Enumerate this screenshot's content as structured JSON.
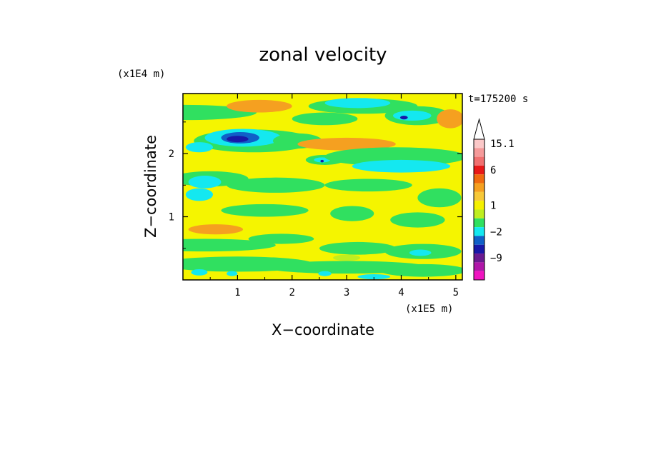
{
  "chart_data": {
    "type": "heatmap",
    "title": "zonal velocity",
    "xlabel": "X−coordinate",
    "ylabel": "Z−coordinate",
    "x_scale_label": "(x1E5 m)",
    "y_scale_label": "(x1E4 m)",
    "time_label": "t=175200 s",
    "xlim": [
      0,
      5.12
    ],
    "ylim": [
      0,
      2.95
    ],
    "x_ticks": [
      1,
      2,
      3,
      4,
      5
    ],
    "x_tick_labels": [
      "1",
      "2",
      "3",
      "4",
      "5"
    ],
    "y_ticks": [
      1,
      2
    ],
    "y_tick_labels": [
      "1",
      "2"
    ],
    "colorbar": {
      "levels_top_to_bottom": [
        {
          "color": "#fbc8c8"
        },
        {
          "color": "#f59a9a"
        },
        {
          "color": "#f07070"
        },
        {
          "color": "#e81818"
        },
        {
          "color": "#f06a10"
        },
        {
          "color": "#f5a020"
        },
        {
          "color": "#f7c838"
        },
        {
          "color": "#f5f000"
        },
        {
          "color": "#bfee20"
        },
        {
          "color": "#30e060"
        },
        {
          "color": "#14e8f0"
        },
        {
          "color": "#1060c8"
        },
        {
          "color": "#1818a8"
        },
        {
          "color": "#6a1a90"
        },
        {
          "color": "#b016a8"
        },
        {
          "color": "#f014c0"
        }
      ],
      "tick_labels": [
        {
          "label": "15.1",
          "level_index": 0
        },
        {
          "label": "6",
          "level_index": 3
        },
        {
          "label": "1",
          "level_index": 7
        },
        {
          "label": "−2",
          "level_index": 10
        },
        {
          "label": "−9",
          "level_index": 13
        }
      ]
    },
    "field": {
      "background_color": "#f5f500",
      "patches": [
        {
          "x": 0.05,
          "z": 2.65,
          "rx": 1.3,
          "rz": 0.12,
          "color": "#30e060"
        },
        {
          "x": 1.4,
          "z": 2.75,
          "rx": 0.6,
          "rz": 0.1,
          "color": "#f5a020"
        },
        {
          "x": 3.3,
          "z": 2.75,
          "rx": 1.0,
          "rz": 0.12,
          "color": "#30e060"
        },
        {
          "x": 3.2,
          "z": 2.8,
          "rx": 0.6,
          "rz": 0.08,
          "color": "#14e8f0"
        },
        {
          "x": 4.3,
          "z": 2.6,
          "rx": 0.6,
          "rz": 0.15,
          "color": "#30e060"
        },
        {
          "x": 4.2,
          "z": 2.6,
          "rx": 0.35,
          "rz": 0.08,
          "color": "#14e8f0"
        },
        {
          "x": 4.05,
          "z": 2.57,
          "rx": 0.07,
          "rz": 0.03,
          "color": "#1818a8"
        },
        {
          "x": 4.9,
          "z": 2.55,
          "rx": 0.25,
          "rz": 0.15,
          "color": "#f5a020"
        },
        {
          "x": 2.6,
          "z": 2.55,
          "rx": 0.6,
          "rz": 0.1,
          "color": "#30e060"
        },
        {
          "x": 1.3,
          "z": 2.2,
          "rx": 1.1,
          "rz": 0.18,
          "color": "#30e060"
        },
        {
          "x": 1.1,
          "z": 2.25,
          "rx": 0.7,
          "rz": 0.14,
          "color": "#14e8f0"
        },
        {
          "x": 1.05,
          "z": 2.25,
          "rx": 0.35,
          "rz": 0.09,
          "color": "#1060c8"
        },
        {
          "x": 1.0,
          "z": 2.23,
          "rx": 0.2,
          "rz": 0.05,
          "color": "#1818a8"
        },
        {
          "x": 0.3,
          "z": 2.1,
          "rx": 0.25,
          "rz": 0.08,
          "color": "#14e8f0"
        },
        {
          "x": 2.1,
          "z": 2.2,
          "rx": 0.45,
          "rz": 0.12,
          "color": "#30e060"
        },
        {
          "x": 3.0,
          "z": 2.15,
          "rx": 0.9,
          "rz": 0.1,
          "color": "#f5a020"
        },
        {
          "x": 2.6,
          "z": 1.9,
          "rx": 0.35,
          "rz": 0.08,
          "color": "#30e060"
        },
        {
          "x": 2.55,
          "z": 1.9,
          "rx": 0.15,
          "rz": 0.04,
          "color": "#14e8f0"
        },
        {
          "x": 2.55,
          "z": 1.88,
          "rx": 0.03,
          "rz": 0.02,
          "color": "#1818a8"
        },
        {
          "x": 3.9,
          "z": 1.95,
          "rx": 1.3,
          "rz": 0.15,
          "color": "#30e060"
        },
        {
          "x": 4.0,
          "z": 1.8,
          "rx": 0.9,
          "rz": 0.1,
          "color": "#14e8f0"
        },
        {
          "x": 0.5,
          "z": 1.6,
          "rx": 0.7,
          "rz": 0.12,
          "color": "#30e060"
        },
        {
          "x": 0.4,
          "z": 1.55,
          "rx": 0.3,
          "rz": 0.1,
          "color": "#14e8f0"
        },
        {
          "x": 0.3,
          "z": 1.35,
          "rx": 0.25,
          "rz": 0.1,
          "color": "#14e8f0"
        },
        {
          "x": 1.7,
          "z": 1.5,
          "rx": 0.9,
          "rz": 0.12,
          "color": "#30e060"
        },
        {
          "x": 3.4,
          "z": 1.5,
          "rx": 0.8,
          "rz": 0.1,
          "color": "#30e060"
        },
        {
          "x": 4.7,
          "z": 1.3,
          "rx": 0.4,
          "rz": 0.15,
          "color": "#30e060"
        },
        {
          "x": 1.5,
          "z": 1.1,
          "rx": 0.8,
          "rz": 0.1,
          "color": "#30e060"
        },
        {
          "x": 3.1,
          "z": 1.05,
          "rx": 0.4,
          "rz": 0.12,
          "color": "#30e060"
        },
        {
          "x": 4.3,
          "z": 0.95,
          "rx": 0.5,
          "rz": 0.12,
          "color": "#30e060"
        },
        {
          "x": 0.6,
          "z": 0.8,
          "rx": 0.5,
          "rz": 0.08,
          "color": "#f5a020"
        },
        {
          "x": 0.4,
          "z": 0.55,
          "rx": 1.3,
          "rz": 0.1,
          "color": "#30e060"
        },
        {
          "x": 1.8,
          "z": 0.65,
          "rx": 0.6,
          "rz": 0.08,
          "color": "#30e060"
        },
        {
          "x": 3.2,
          "z": 0.5,
          "rx": 0.7,
          "rz": 0.1,
          "color": "#30e060"
        },
        {
          "x": 4.4,
          "z": 0.45,
          "rx": 0.7,
          "rz": 0.12,
          "color": "#30e060"
        },
        {
          "x": 4.35,
          "z": 0.43,
          "rx": 0.2,
          "rz": 0.05,
          "color": "#14e8f0"
        },
        {
          "x": 1.0,
          "z": 0.25,
          "rx": 1.4,
          "rz": 0.12,
          "color": "#30e060"
        },
        {
          "x": 3.0,
          "z": 0.2,
          "rx": 1.5,
          "rz": 0.1,
          "color": "#30e060"
        },
        {
          "x": 4.4,
          "z": 0.15,
          "rx": 0.8,
          "rz": 0.1,
          "color": "#30e060"
        },
        {
          "x": 0.3,
          "z": 0.12,
          "rx": 0.15,
          "rz": 0.05,
          "color": "#14e8f0"
        },
        {
          "x": 0.9,
          "z": 0.1,
          "rx": 0.1,
          "rz": 0.04,
          "color": "#14e8f0"
        },
        {
          "x": 2.6,
          "z": 0.1,
          "rx": 0.12,
          "rz": 0.04,
          "color": "#14e8f0"
        },
        {
          "x": 3.5,
          "z": 0.05,
          "rx": 0.3,
          "rz": 0.04,
          "color": "#14e8f0"
        },
        {
          "x": 3.0,
          "z": 0.35,
          "rx": 0.25,
          "rz": 0.05,
          "color": "#bfee20"
        }
      ]
    }
  }
}
